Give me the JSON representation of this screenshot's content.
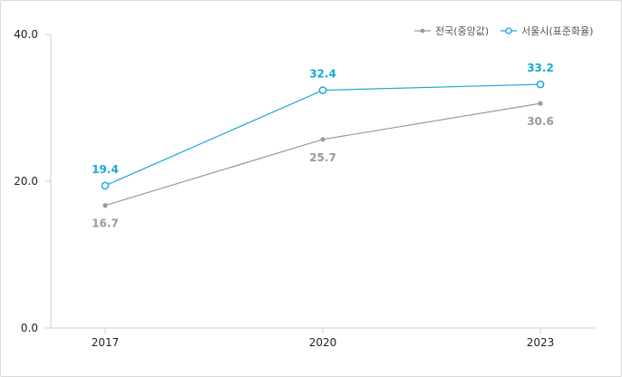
{
  "chart_data": {
    "type": "line",
    "categories": [
      "2017",
      "2020",
      "2023"
    ],
    "ylim": [
      0,
      40
    ],
    "yticks": [
      "0.0",
      "20.0",
      "40.0"
    ],
    "grid": false,
    "legend_placement": "top-right",
    "series": [
      {
        "name": "전국(중앙값)",
        "values": [
          16.7,
          25.7,
          30.6
        ],
        "labels": [
          "16.7",
          "25.7",
          "30.6"
        ],
        "color": "#9a9a9a",
        "marker": "filled-dot"
      },
      {
        "name": "서울시(표준화율)",
        "values": [
          19.4,
          32.4,
          33.2
        ],
        "labels": [
          "19.4",
          "32.4",
          "33.2"
        ],
        "color": "#1aa7d8",
        "marker": "hollow-circle"
      }
    ]
  }
}
